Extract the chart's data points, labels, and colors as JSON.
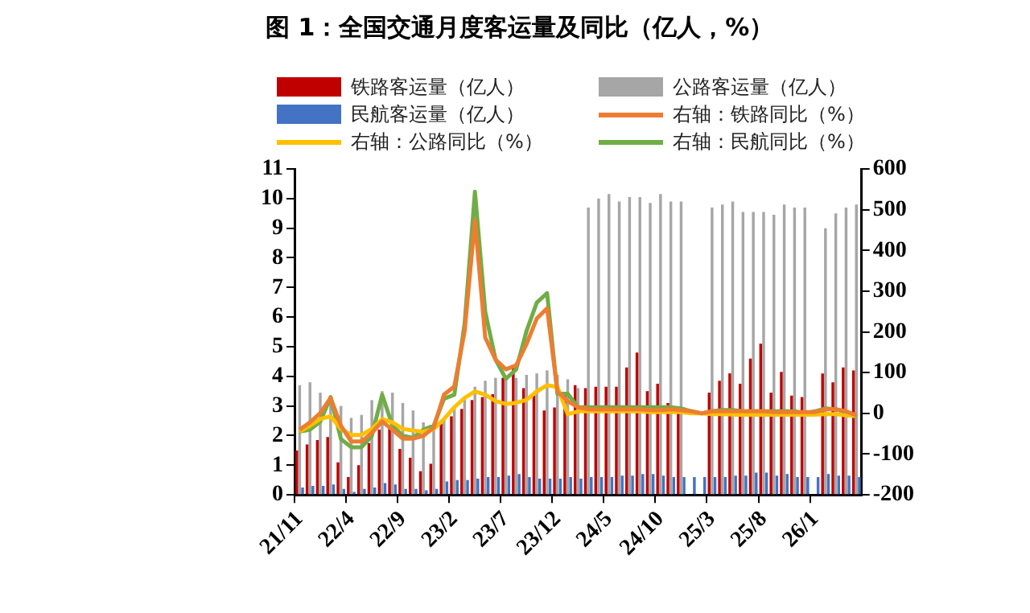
{
  "chart_data": {
    "type": "bar",
    "title": "图 1：全国交通月度客运量及同比（亿人，%）",
    "categories": [
      "21/11",
      null,
      null,
      null,
      null,
      "22/4",
      null,
      null,
      null,
      null,
      "22/9",
      null,
      null,
      null,
      null,
      "23/2",
      null,
      null,
      null,
      null,
      "23/7",
      null,
      null,
      null,
      null,
      "23/12",
      null,
      null,
      null,
      null,
      "24/5",
      null,
      null,
      null,
      null,
      "24/10",
      null,
      null,
      null,
      null,
      "25/3",
      null,
      null,
      null,
      null,
      "25/8",
      null,
      null,
      null,
      null,
      "26/1",
      null,
      null,
      null,
      null
    ],
    "series": [
      {
        "name": "铁路客运量（亿人）",
        "color": "#c00000",
        "values": [
          1.5,
          1.7,
          1.85,
          1.95,
          1.1,
          0.6,
          1.0,
          1.75,
          2.2,
          2.25,
          1.55,
          1.25,
          0.8,
          1.05,
          2.4,
          2.65,
          2.9,
          3.2,
          3.3,
          3.4,
          3.95,
          4.35,
          3.6,
          3.35,
          2.85,
          2.95,
          3.4,
          3.7,
          3.6,
          3.65,
          3.65,
          3.65,
          4.3,
          4.8,
          3.5,
          3.75,
          3.1,
          2.75,
          null,
          null,
          3.45,
          3.85,
          4.1,
          3.75,
          4.6,
          5.1,
          3.45,
          4.15,
          3.35,
          3.3,
          null,
          4.1,
          3.8,
          4.3,
          4.2
        ]
      },
      {
        "name": "公路客运量（亿人）",
        "color": "#a6a6a6",
        "values": [
          3.7,
          3.8,
          3.45,
          3.35,
          3.0,
          2.6,
          2.7,
          3.2,
          3.5,
          3.45,
          3.1,
          2.85,
          2.45,
          2.35,
          2.6,
          3.0,
          3.3,
          3.65,
          3.85,
          3.95,
          4.0,
          3.95,
          4.05,
          4.1,
          4.2,
          4.05,
          3.9,
          3.6,
          9.7,
          10.0,
          10.15,
          9.9,
          10.05,
          10.05,
          9.85,
          10.15,
          9.9,
          9.9,
          null,
          null,
          9.7,
          9.8,
          9.9,
          9.55,
          9.55,
          9.55,
          9.45,
          9.8,
          9.7,
          9.7,
          null,
          9.0,
          9.5,
          9.7,
          9.8
        ]
      },
      {
        "name": "民航客运量（亿人）",
        "color": "#4472c4",
        "values": [
          0.25,
          0.3,
          0.3,
          0.35,
          0.2,
          0.1,
          0.2,
          0.25,
          0.4,
          0.35,
          0.2,
          0.2,
          0.15,
          0.2,
          0.45,
          0.5,
          0.5,
          0.55,
          0.6,
          0.6,
          0.65,
          0.7,
          0.6,
          0.55,
          0.55,
          0.55,
          0.6,
          0.55,
          0.6,
          0.6,
          0.6,
          0.65,
          0.65,
          0.7,
          0.7,
          0.65,
          0.6,
          0.6,
          0.6,
          0.6,
          0.6,
          0.6,
          0.65,
          0.65,
          0.75,
          0.75,
          0.65,
          0.7,
          0.6,
          0.6,
          0.6,
          0.7,
          0.65,
          0.65,
          0.6
        ]
      },
      {
        "name": "右轴：铁路同比（%）",
        "type": "line",
        "axis": "y2",
        "color": "#ed7d31",
        "values": [
          -40,
          -22,
          1,
          38,
          -30,
          -69,
          -69,
          -48,
          -20,
          -40,
          -62,
          -62,
          -55,
          -35,
          46,
          66,
          202,
          474,
          186,
          132,
          108,
          118,
          170,
          233,
          258,
          54,
          30,
          15,
          10,
          10,
          10,
          10,
          10,
          10,
          8,
          8,
          10,
          8,
          5,
          0,
          5,
          5,
          5,
          5,
          5,
          5,
          3,
          3,
          3,
          3,
          3,
          10,
          10,
          5,
          -5
        ]
      },
      {
        "name": "右轴：公路同比（%）",
        "type": "line",
        "axis": "y2",
        "color": "#ffc000",
        "values": [
          -45,
          -30,
          -14,
          -7,
          -38,
          -53,
          -53,
          -38,
          -14,
          -22,
          -38,
          -42,
          -45,
          -38,
          -14,
          15,
          38,
          54,
          46,
          30,
          23,
          26,
          33,
          54,
          69,
          65,
          -2,
          5,
          5,
          5,
          5,
          5,
          5,
          5,
          3,
          3,
          3,
          3,
          0,
          0,
          -2,
          -2,
          -3,
          -3,
          -3,
          -3,
          -3,
          -3,
          -3,
          -3,
          -3,
          -2,
          -2,
          -5,
          -5
        ]
      },
      {
        "name": "右轴：民航同比（%）",
        "type": "line",
        "axis": "y2",
        "color": "#70ad47",
        "values": [
          -45,
          -40,
          -20,
          40,
          -63,
          -83,
          -83,
          -55,
          46,
          -30,
          -55,
          -60,
          -40,
          -30,
          36,
          46,
          220,
          544,
          249,
          132,
          85,
          108,
          202,
          272,
          295,
          48,
          48,
          15,
          15,
          15,
          15,
          15,
          15,
          15,
          15,
          15,
          15,
          12,
          5,
          0,
          5,
          8,
          8,
          5,
          5,
          5,
          5,
          5,
          5,
          0,
          5,
          12,
          10,
          3,
          -10
        ]
      }
    ],
    "ylim": [
      0,
      11
    ],
    "yticks": [
      0,
      1,
      2,
      3,
      4,
      5,
      6,
      7,
      8,
      9,
      10,
      11
    ],
    "y2lim": [
      -200,
      600
    ],
    "y2ticks": [
      -200,
      -100,
      0,
      100,
      200,
      300,
      400,
      500,
      600
    ],
    "legend": "top",
    "grid": false,
    "marker": "none",
    "line_style": "solid"
  }
}
